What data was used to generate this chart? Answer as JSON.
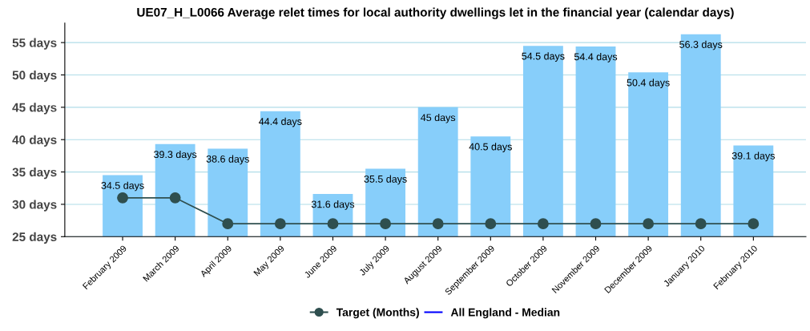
{
  "chart_data": {
    "type": "bar",
    "title": "UE07_H_L0066 Average relet times for local authority dwellings let in the financial year (calendar days)",
    "categories": [
      "February 2009",
      "March 2009",
      "April 2009",
      "May 2009",
      "June 2009",
      "July 2009",
      "August 2009",
      "September 2009",
      "October 2009",
      "November 2009",
      "December 2009",
      "January 2010",
      "February 2010"
    ],
    "series": [
      {
        "name": null,
        "color": "#87cefa",
        "values": [
          34.5,
          39.3,
          38.6,
          44.4,
          31.6,
          35.5,
          45,
          40.5,
          54.5,
          54.4,
          50.4,
          56.3,
          39.1
        ],
        "value_labels": [
          "34.5 days",
          "39.3 days",
          "38.6 days",
          "44.4 days",
          "31.6 days",
          "35.5 days",
          "45 days",
          "40.5 days",
          "54.5 days",
          "54.4 days",
          "50.4 days",
          "56.3 days",
          "39.1 days"
        ]
      },
      {
        "name": "Target (Months)",
        "type": "line",
        "color": "#2f4f4f",
        "marker": "circle",
        "values": [
          31,
          31,
          27,
          27,
          27,
          27,
          27,
          27,
          27,
          27,
          27,
          27,
          27
        ]
      },
      {
        "name": "All England - Median",
        "type": "line",
        "color": "#0000ff",
        "marker": "none",
        "values": [
          null,
          null,
          null,
          null,
          null,
          null,
          null,
          null,
          null,
          null,
          null,
          null,
          null
        ]
      }
    ],
    "ylim": [
      25,
      58
    ],
    "yticks": [
      {
        "value": 25,
        "label": "25 days"
      },
      {
        "value": 30,
        "label": "30 days"
      },
      {
        "value": 35,
        "label": "35 days"
      },
      {
        "value": 40,
        "label": "40 days"
      },
      {
        "value": 45,
        "label": "45 days"
      },
      {
        "value": 50,
        "label": "50 days"
      },
      {
        "value": 55,
        "label": "55 days"
      }
    ],
    "grid": "y",
    "legend": "bottom"
  }
}
